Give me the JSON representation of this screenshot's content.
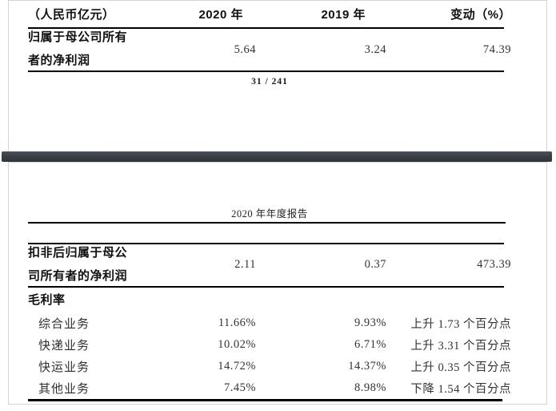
{
  "colors": {
    "separator_bar": "#3a4046",
    "page_border": "#d4d4d4",
    "rule": "#000000",
    "text_primary": "#101010",
    "text_secondary": "#333333"
  },
  "page1": {
    "table": {
      "header": {
        "col1": "（人民币亿元）",
        "col2": "2020 年",
        "col3": "2019 年",
        "col4": "变动（%）"
      },
      "net_profit_row": {
        "label_line1": "归属于母公司所有",
        "label_line2": "者的净利润",
        "v2020": "5.64",
        "v2019": "3.24",
        "change": "74.39"
      }
    },
    "footer_page_number": "31 / 241"
  },
  "page2": {
    "header_title": "2020 年年度报告",
    "table": {
      "deduct_row": {
        "label_line1": "扣非后归属于母公",
        "label_line2": "司所有者的净利润",
        "v2020": "2.11",
        "v2019": "0.37",
        "change": "473.39"
      },
      "gross_margin_label": "毛利率",
      "rows": [
        {
          "label": "综合业务",
          "v2020": "11.66%",
          "v2019": "9.93%",
          "change": "上升 1.73 个百分点"
        },
        {
          "label": "快递业务",
          "v2020": "10.02%",
          "v2019": "6.71%",
          "change": "上升 3.31 个百分点"
        },
        {
          "label": "快运业务",
          "v2020": "14.72%",
          "v2019": "14.37%",
          "change": "上升 0.35 个百分点"
        },
        {
          "label": "其他业务",
          "v2020": "7.45%",
          "v2019": "8.98%",
          "change": "下降 1.54 个百分点"
        }
      ]
    }
  }
}
